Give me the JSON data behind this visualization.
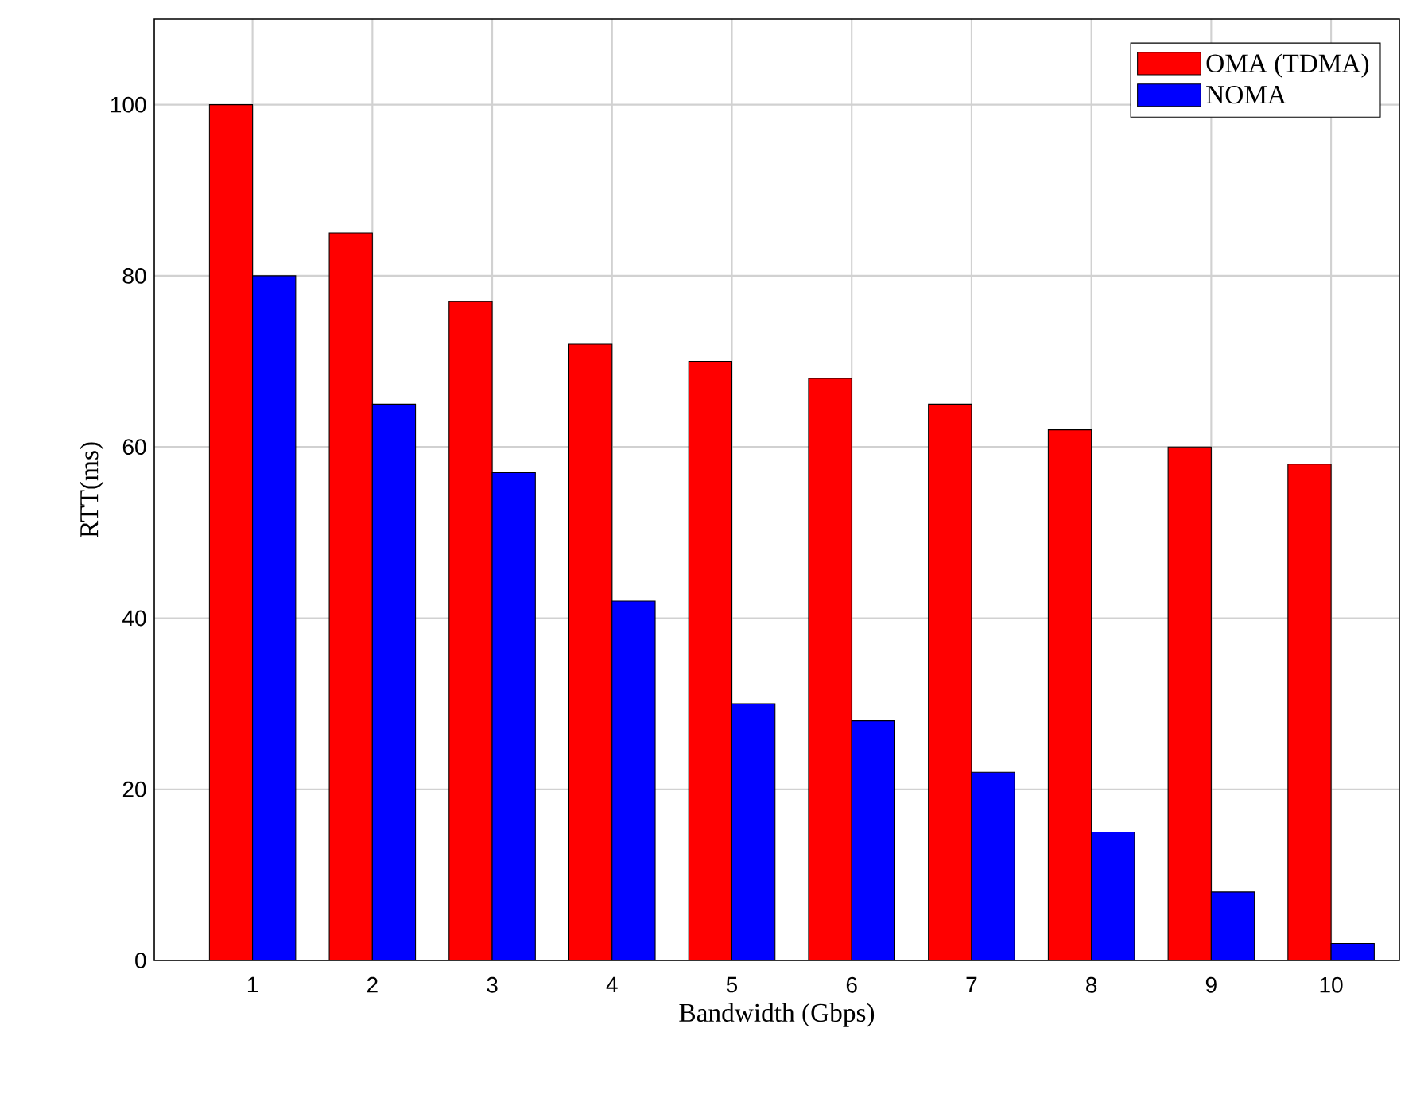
{
  "chart_data": {
    "type": "bar",
    "xlabel": "Bandwidth (Gbps)",
    "ylabel": "RTT(ms)",
    "categories": [
      "1",
      "2",
      "3",
      "4",
      "5",
      "6",
      "7",
      "8",
      "9",
      "10"
    ],
    "series": [
      {
        "name": "OMA (TDMA)",
        "color": "#ff0000",
        "values": [
          100,
          85,
          77,
          72,
          70,
          68,
          65,
          62,
          60,
          58
        ]
      },
      {
        "name": "NOMA",
        "color": "#0000ff",
        "values": [
          80,
          65,
          57,
          42,
          30,
          28,
          22,
          15,
          8,
          2
        ]
      }
    ],
    "ylim": [
      0,
      110
    ],
    "yticks": [
      0,
      20,
      40,
      60,
      80,
      100
    ],
    "grid": true,
    "legend": "top right"
  }
}
